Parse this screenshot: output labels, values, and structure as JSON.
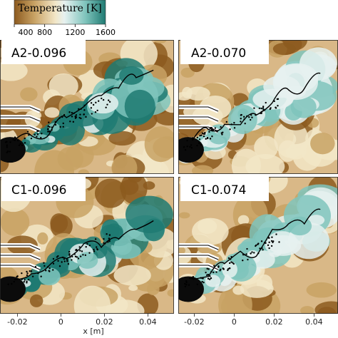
{
  "chart_data": {
    "type": "heatmap",
    "colorbar": {
      "title": "Temperature [K]",
      "min": 400,
      "max": 1600,
      "ticks": [
        400,
        800,
        1200,
        1600
      ],
      "colors": [
        "#8c5a1f",
        "#c8a264",
        "#f2e6c7",
        "#e6f1f0",
        "#7fc4bc",
        "#1f7a72"
      ]
    },
    "xlabel": "x [m]",
    "x_ticks": [
      -0.02,
      0,
      0.02,
      0.04
    ],
    "panels": [
      {
        "label": "A2-0.096"
      },
      {
        "label": "A2-0.070"
      },
      {
        "label": "C1-0.096"
      },
      {
        "label": "C1-0.074"
      }
    ]
  }
}
